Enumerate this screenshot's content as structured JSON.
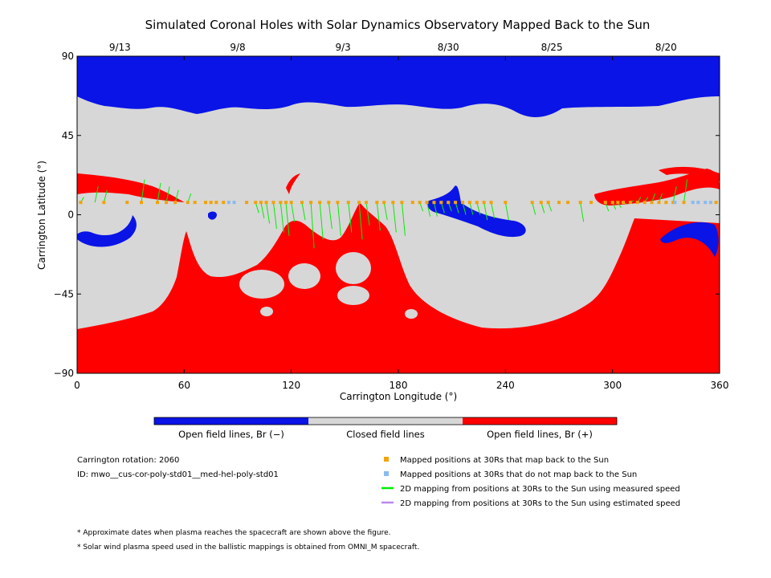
{
  "chart_data": {
    "type": "map",
    "title": "Simulated Coronal Holes with Solar Dynamics Observatory Mapped Back to the Sun",
    "xlabel": "Carrington Longitude (°)",
    "ylabel": "Carrington Latitude (°)",
    "xlim": [
      0,
      360
    ],
    "ylim": [
      -90,
      90
    ],
    "x_ticks": [
      "0",
      "60",
      "120",
      "180",
      "240",
      "300",
      "360"
    ],
    "y_ticks": [
      "90",
      "45",
      "0",
      "−45",
      "−90"
    ],
    "top_dates": [
      {
        "label": "9/13",
        "lon": 24
      },
      {
        "label": "9/8",
        "lon": 90
      },
      {
        "label": "9/3",
        "lon": 149
      },
      {
        "label": "8/30",
        "lon": 208
      },
      {
        "label": "8/25",
        "lon": 266
      },
      {
        "label": "8/20",
        "lon": 330
      }
    ],
    "colorbar": [
      {
        "label": "Open field lines, Br (−)",
        "color": "#0a14e6"
      },
      {
        "label": "Closed field lines",
        "color": "#d7d7d7"
      },
      {
        "label": "Open field lines, Br (+)",
        "color": "#ff0000"
      }
    ],
    "mapped_latitude": 7,
    "mapped_back_lons": [
      2,
      15,
      28,
      36,
      45,
      50,
      55,
      62,
      66,
      72,
      75,
      78,
      82,
      95,
      100,
      103,
      106,
      110,
      114,
      117,
      120,
      126,
      131,
      136,
      141,
      146,
      152,
      158,
      162,
      168,
      172,
      177,
      182,
      188,
      192,
      196,
      200,
      204,
      208,
      212,
      216,
      220,
      224,
      228,
      232,
      240,
      255,
      260,
      264,
      270,
      275,
      282,
      288,
      296,
      300,
      303,
      306,
      310,
      314,
      318,
      322,
      326,
      330,
      334,
      340,
      358
    ],
    "not_mapped_lons": [
      85,
      88,
      335,
      345,
      348,
      352,
      355
    ],
    "mappings": [
      {
        "lon": 2,
        "lat": 10
      },
      {
        "lon": 10,
        "lat": 16
      },
      {
        "lon": 15,
        "lat": 14
      },
      {
        "lon": 36,
        "lat": 20
      },
      {
        "lon": 45,
        "lat": 18
      },
      {
        "lon": 50,
        "lat": 16
      },
      {
        "lon": 55,
        "lat": 14
      },
      {
        "lon": 62,
        "lat": 12
      },
      {
        "lon": 100,
        "lat": 1
      },
      {
        "lon": 103,
        "lat": -2
      },
      {
        "lon": 106,
        "lat": -5
      },
      {
        "lon": 110,
        "lat": -8
      },
      {
        "lon": 114,
        "lat": -10
      },
      {
        "lon": 117,
        "lat": -12
      },
      {
        "lon": 120,
        "lat": -4
      },
      {
        "lon": 126,
        "lat": -3
      },
      {
        "lon": 131,
        "lat": -19
      },
      {
        "lon": 136,
        "lat": -14
      },
      {
        "lon": 141,
        "lat": -8
      },
      {
        "lon": 146,
        "lat": -12
      },
      {
        "lon": 152,
        "lat": -10
      },
      {
        "lon": 158,
        "lat": -14
      },
      {
        "lon": 162,
        "lat": -6
      },
      {
        "lon": 168,
        "lat": -9
      },
      {
        "lon": 172,
        "lat": -3
      },
      {
        "lon": 177,
        "lat": -10
      },
      {
        "lon": 182,
        "lat": -12
      },
      {
        "lon": 192,
        "lat": 2
      },
      {
        "lon": 196,
        "lat": -1
      },
      {
        "lon": 200,
        "lat": -1
      },
      {
        "lon": 204,
        "lat": 1
      },
      {
        "lon": 208,
        "lat": 2
      },
      {
        "lon": 212,
        "lat": 1
      },
      {
        "lon": 216,
        "lat": 0
      },
      {
        "lon": 220,
        "lat": 0
      },
      {
        "lon": 224,
        "lat": 0
      },
      {
        "lon": 228,
        "lat": -3
      },
      {
        "lon": 232,
        "lat": -2
      },
      {
        "lon": 240,
        "lat": -3
      },
      {
        "lon": 255,
        "lat": 0
      },
      {
        "lon": 260,
        "lat": 1
      },
      {
        "lon": 264,
        "lat": 2
      },
      {
        "lon": 282,
        "lat": -4
      },
      {
        "lon": 296,
        "lat": 2
      },
      {
        "lon": 300,
        "lat": 3
      },
      {
        "lon": 303,
        "lat": 4
      },
      {
        "lon": 306,
        "lat": 6
      },
      {
        "lon": 310,
        "lat": 8
      },
      {
        "lon": 314,
        "lat": 10
      },
      {
        "lon": 318,
        "lat": 10
      },
      {
        "lon": 322,
        "lat": 12
      },
      {
        "lon": 326,
        "lat": 12
      },
      {
        "lon": 334,
        "lat": 16
      },
      {
        "lon": 340,
        "lat": 20
      }
    ]
  },
  "info": {
    "rotation": "Carrington rotation: 2060",
    "id": "ID: mwo__cus-cor-poly-std01__med-hel-poly-std01"
  },
  "legend": [
    {
      "label": "Mapped positions at 30Rs that map back to the Sun",
      "color": "#f0a30a",
      "kind": "square"
    },
    {
      "label": "Mapped positions at 30Rs that do not map back to the Sun",
      "color": "#88bbee",
      "kind": "square"
    },
    {
      "label": "2D mapping from positions at 30Rs to the Sun using measured speed",
      "color": "#00ee00",
      "kind": "line"
    },
    {
      "label": "2D mapping from positions at 30Rs to the Sun using estimated speed",
      "color": "#bb88ee",
      "kind": "line"
    }
  ],
  "notes": [
    "* Approximate dates when plasma reaches the spacecraft are shown above the figure.",
    "* Solar wind plasma speed used in the ballistic mappings is obtained from OMNI_M spacecraft."
  ]
}
